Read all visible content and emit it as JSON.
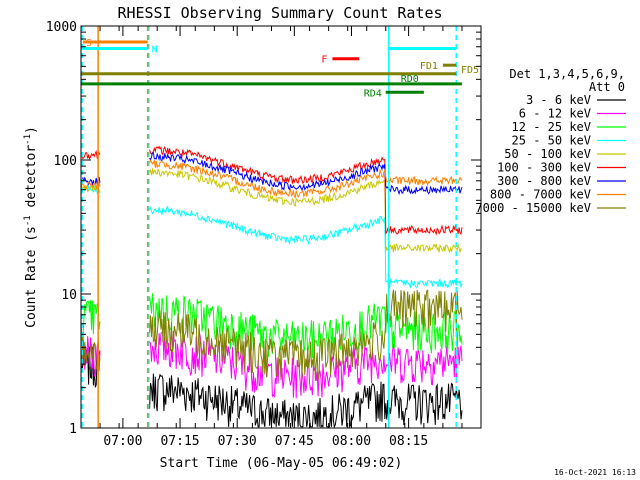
{
  "chart_data": {
    "type": "line",
    "title": "RHESSI Observing Summary Count Rates",
    "xlabel": "Start Time (06-May-05 06:49:02)",
    "ylabel": "Count Rate (s",
    "ylabel_sup": "-1",
    "ylabel_tail": " detector",
    "ylabel_sup2": "-1",
    "ylabel_close": ")",
    "yscale": "log",
    "xlim_minutes": [
      0,
      105
    ],
    "ylim": [
      1,
      1000
    ],
    "x_ticks": [
      {
        "m": 11,
        "label": "07:00"
      },
      {
        "m": 26,
        "label": "07:15"
      },
      {
        "m": 41,
        "label": "07:30"
      },
      {
        "m": 56,
        "label": "07:45"
      },
      {
        "m": 71,
        "label": "08:00"
      },
      {
        "m": 86,
        "label": "08:15"
      }
    ],
    "y_ticks": [
      {
        "v": 1,
        "label": "1"
      },
      {
        "v": 10,
        "label": "10"
      },
      {
        "v": 100,
        "label": "100"
      },
      {
        "v": 1000,
        "label": "1000"
      }
    ],
    "legend": {
      "header1": "Det 1,3,4,5,6,9,",
      "header2": "Att 0",
      "position": "right"
    },
    "series": [
      {
        "name": "3 - 6 keV",
        "color": "#000000",
        "level": 1.6,
        "pre": 3.0,
        "post": 1.6
      },
      {
        "name": "6 - 12 keV",
        "color": "#ff00ff",
        "level": 3.3,
        "pre": 3.6,
        "post": 3.2
      },
      {
        "name": "12 - 25 keV",
        "color": "#00ff00",
        "level": 6.2,
        "pre": 6.8,
        "post": 5.5
      },
      {
        "name": "25 - 50 keV",
        "color": "#00ffff",
        "level": 34,
        "pre": 60,
        "post": 12
      },
      {
        "name": "50 - 100 keV",
        "color": "#c8c800",
        "level": 65,
        "pre": 62,
        "post": 22
      },
      {
        "name": "100 - 300 keV",
        "color": "#ff0000",
        "level": 95,
        "pre": 110,
        "post": 30
      },
      {
        "name": "300 - 800 keV",
        "color": "#0000ff",
        "level": 85,
        "pre": 70,
        "post": 60
      },
      {
        "name": "800 - 7000 keV",
        "color": "#ff8000",
        "level": 75,
        "pre": 65,
        "post": 70
      },
      {
        "name": "7000 - 15000 keV",
        "color": "#808000",
        "level": 4.5,
        "pre": 4.0,
        "post": 8.0
      }
    ],
    "data_gaps_minutes": [
      [
        5,
        18
      ]
    ],
    "vertical_markers": [
      {
        "m": 0.3,
        "color": "#00ffff",
        "style": "dashed"
      },
      {
        "m": 4.5,
        "color": "#ff8000",
        "style": "solid"
      },
      {
        "m": 17.8,
        "color": "#00ffff",
        "style": "dashed"
      },
      {
        "m": 17.5,
        "color": "#ff8000",
        "style": "dashed"
      },
      {
        "m": 80.8,
        "color": "#00ffff",
        "style": "solid"
      },
      {
        "m": 98.5,
        "color": "#00ffff",
        "style": "dashed"
      }
    ],
    "flag_bars": [
      {
        "label": "S",
        "color": "#ff8000",
        "m0": 0.5,
        "m1": 17.5,
        "v": 760
      },
      {
        "label": "N",
        "color": "#00ffff",
        "m0": 0,
        "m1": 17.5,
        "v": 680
      },
      {
        "label": "N",
        "color": "#00ffff",
        "m0": 80.5,
        "m1": 98.5,
        "v": 680,
        "hide_label": true
      },
      {
        "label": "F",
        "color": "#ff0000",
        "m0": 66,
        "m1": 73,
        "v": 570
      },
      {
        "label": "FD1",
        "color": "#808000",
        "m0": 95,
        "m1": 98.5,
        "v": 510
      },
      {
        "label": "FD5",
        "color": "#808000",
        "m0": 0,
        "m1": 98.5,
        "v": 440
      },
      {
        "label": "RD0",
        "color": "#008000",
        "m0": 0,
        "m1": 100,
        "v": 370
      },
      {
        "label": "RD4",
        "color": "#008000",
        "m0": 80,
        "m1": 90,
        "v": 320
      }
    ]
  },
  "footer": {
    "timestamp": "16-Oct-2021 16:13"
  }
}
